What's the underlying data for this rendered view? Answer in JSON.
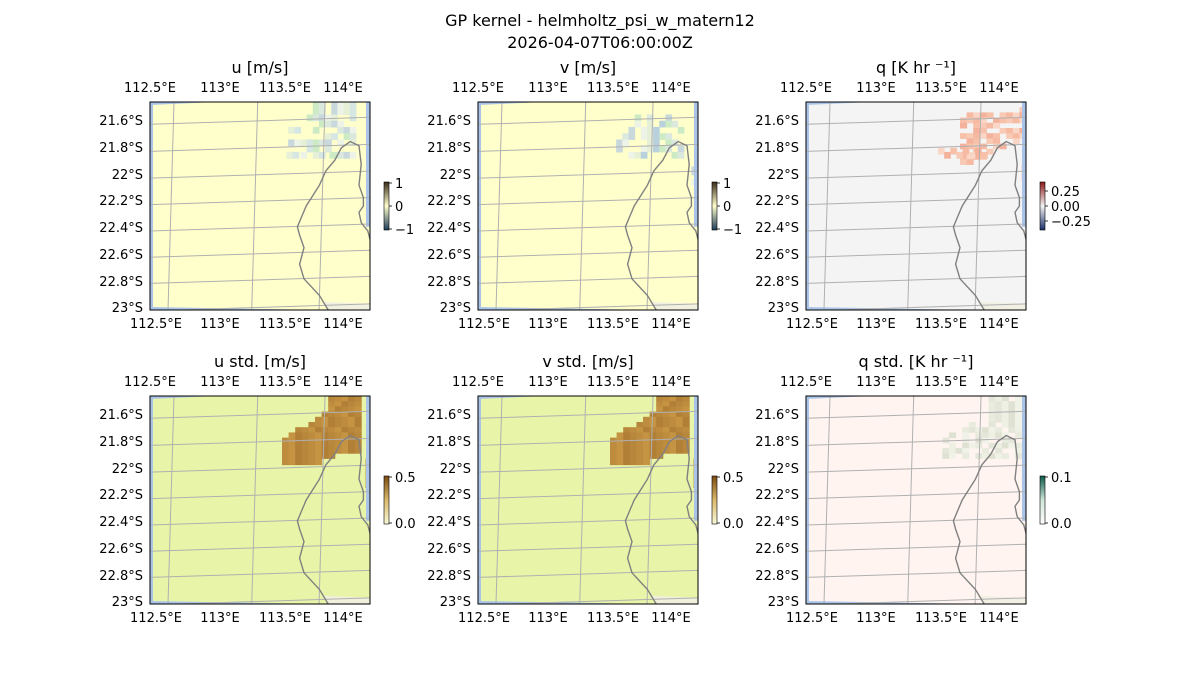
{
  "figure": {
    "title_line1": "GP kernel - helmholtz_psi_w_matern12",
    "title_line2": "2026-04-07T06:00:00Z"
  },
  "map": {
    "lon_ticks": [
      "112.5°E",
      "113°E",
      "113.5°E",
      "114°E"
    ],
    "lat_ticks": [
      "21.6°S",
      "21.8°S",
      "22°S",
      "22.2°S",
      "22.4°S",
      "22.6°S",
      "22.8°S",
      "23°S"
    ],
    "ocean_color": "#a9c4e8",
    "coast_color": "#808080",
    "grid_color": "#b0b0b0",
    "land_color": "#f1efe1"
  },
  "chart_data": [
    {
      "type": "heatmap",
      "title": "u [m/s]",
      "colorbar_ticks": [
        "1",
        "0",
        "−1"
      ],
      "colorbar_range": [
        -1,
        1
      ],
      "background_color": "#ffffcc",
      "anomaly_colors": [
        "#ccebc5",
        "#dbe8de",
        "#c8d8dc",
        "#eef3e8",
        "#e6f0d6",
        "#d6e6e2"
      ]
    },
    {
      "type": "heatmap",
      "title": "v [m/s]",
      "colorbar_ticks": [
        "1",
        "0",
        "−1"
      ],
      "colorbar_range": [
        -1,
        1
      ],
      "background_color": "#ffffcc",
      "anomaly_colors": [
        "#ccebc5",
        "#dbe8de",
        "#c8d8dc",
        "#eef3e8",
        "#e6f0d6",
        "#b9d1dc"
      ]
    },
    {
      "type": "heatmap",
      "title": "q [K hr ⁻¹]",
      "colorbar_ticks": [
        "0.25",
        "0.00",
        "−0.25"
      ],
      "colorbar_range": [
        -0.4,
        0.4
      ],
      "background_color": "#f4f4f4",
      "anomaly_colors": [
        "#f8c9b4",
        "#f6b9a2",
        "#fad6c6",
        "#f4b29c",
        "#f7c0a8"
      ]
    },
    {
      "type": "heatmap",
      "title": "u std. [m/s]",
      "colorbar_ticks": [
        "0.5",
        "0.0"
      ],
      "colorbar_range": [
        0,
        0.6
      ],
      "background_color": "#e8f5a8",
      "anomaly_colors": [
        "#b7873c",
        "#be8c3e",
        "#c59442",
        "#b27f37"
      ]
    },
    {
      "type": "heatmap",
      "title": "v std. [m/s]",
      "colorbar_ticks": [
        "0.5",
        "0.0"
      ],
      "colorbar_range": [
        0,
        0.6
      ],
      "background_color": "#e8f5a8",
      "anomaly_colors": [
        "#b7873c",
        "#be8c3e",
        "#c59442",
        "#b27f37"
      ]
    },
    {
      "type": "heatmap",
      "title": "q std. [K hr ⁻¹]",
      "colorbar_ticks": [
        "0.1",
        "0.0"
      ],
      "colorbar_range": [
        0,
        0.12
      ],
      "background_color": "#fff4f0",
      "anomaly_colors": [
        "#e3e6d8",
        "#eef0e4",
        "#dfe2d2",
        "#f0f2e8",
        "#e8ebdd"
      ]
    }
  ]
}
